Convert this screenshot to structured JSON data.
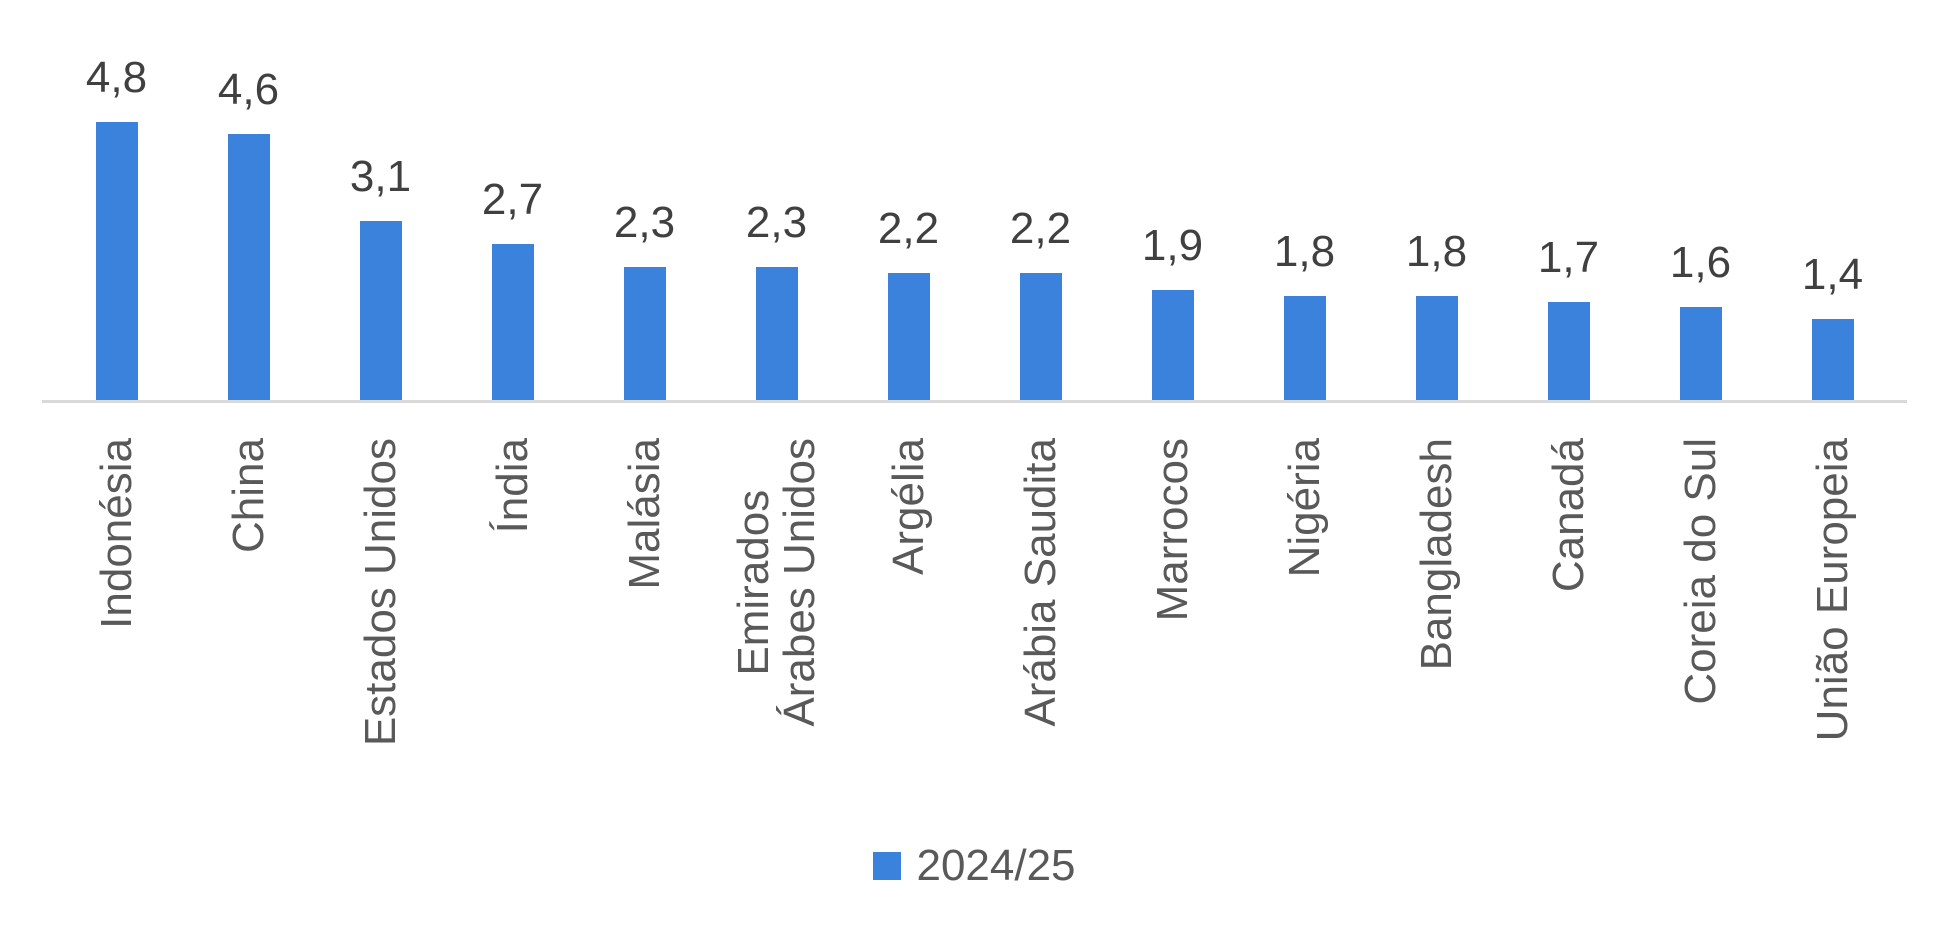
{
  "chart_data": {
    "type": "bar",
    "categories": [
      "Indonésia",
      "China",
      "Estados Unidos",
      "Índia",
      "Malásia",
      "Emirados\nÁrabes Unidos",
      "Argélia",
      "Arábia Saudita",
      "Marrocos",
      "Nigéria",
      "Bangladesh",
      "Canadá",
      "Coreia do Sul",
      "União Europeia"
    ],
    "series": [
      {
        "name": "2024/25",
        "values": [
          4.8,
          4.6,
          3.1,
          2.7,
          2.3,
          2.3,
          2.2,
          2.2,
          1.9,
          1.8,
          1.8,
          1.7,
          1.6,
          1.4
        ]
      }
    ],
    "value_labels": [
      "4,8",
      "4,6",
      "3,1",
      "2,7",
      "2,3",
      "2,3",
      "2,2",
      "2,2",
      "1,9",
      "1,8",
      "1,8",
      "1,7",
      "1,6",
      "1,4"
    ],
    "title": "",
    "xlabel": "",
    "ylabel": "",
    "ylim": [
      0,
      5
    ],
    "grid": false,
    "legend_position": "bottom",
    "decimal_separator": ",",
    "colors": {
      "bar": "#3b82dc",
      "axis_line": "#d9d9d9",
      "value_label": "#404040",
      "category_label": "#595959",
      "background": "#ffffff"
    }
  },
  "legend": {
    "items": [
      {
        "label": "2024/25",
        "color": "#3b82dc"
      }
    ]
  }
}
